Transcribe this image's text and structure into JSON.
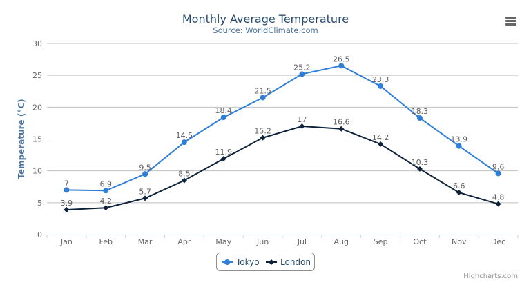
{
  "chart_data": {
    "type": "line",
    "title": "Monthly Average Temperature",
    "subtitle": "Source: WorldClimate.com",
    "xlabel": "",
    "ylabel": "Temperature (°C)",
    "categories": [
      "Jan",
      "Feb",
      "Mar",
      "Apr",
      "May",
      "Jun",
      "Jul",
      "Aug",
      "Sep",
      "Oct",
      "Nov",
      "Dec"
    ],
    "ylim": [
      0,
      30
    ],
    "yticks": [
      0,
      5,
      10,
      15,
      20,
      25,
      30
    ],
    "grid": true,
    "legend": "bottom-center",
    "series": [
      {
        "name": "Tokyo",
        "color": "#2f7ed8",
        "marker": "circle",
        "values": [
          7.0,
          6.9,
          9.5,
          14.5,
          18.4,
          21.5,
          25.2,
          26.5,
          23.3,
          18.3,
          13.9,
          9.6
        ]
      },
      {
        "name": "London",
        "color": "#0d233a",
        "marker": "diamond",
        "values": [
          3.9,
          4.2,
          5.7,
          8.5,
          11.9,
          15.2,
          17.0,
          16.6,
          14.2,
          10.3,
          6.6,
          4.8
        ]
      }
    ]
  },
  "credits": "Highcharts.com",
  "menu_icon": "hamburger-menu-icon"
}
